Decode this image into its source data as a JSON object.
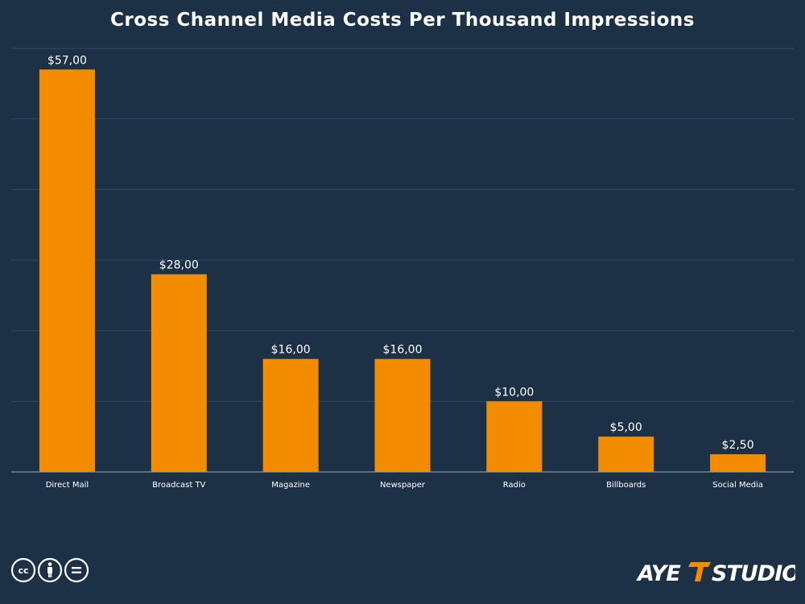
{
  "chart_data": {
    "type": "bar",
    "title": "Cross Channel Media Costs Per Thousand Impressions",
    "categories": [
      "Direct Mail",
      "Broadcast TV",
      "Magazine",
      "Newspaper",
      "Radio",
      "Billboards",
      "Social Media"
    ],
    "values": [
      57,
      28,
      16,
      16,
      10,
      5,
      2.5
    ],
    "value_labels": [
      "$57,00",
      "$28,00",
      "$16,00",
      "$16,00",
      "$10,00",
      "$5,00",
      "$2,50"
    ],
    "xlabel": "",
    "ylabel": "",
    "ylim": [
      0,
      60
    ],
    "grid": true,
    "bar_color": "#f48c00"
  },
  "colors": {
    "background": "#1d3146",
    "bar": "#f48c00",
    "text": "#ffffff"
  },
  "footer": {
    "license_icon": "creative-commons-by-nd-icon",
    "brand": "AYE STUDIOS"
  }
}
